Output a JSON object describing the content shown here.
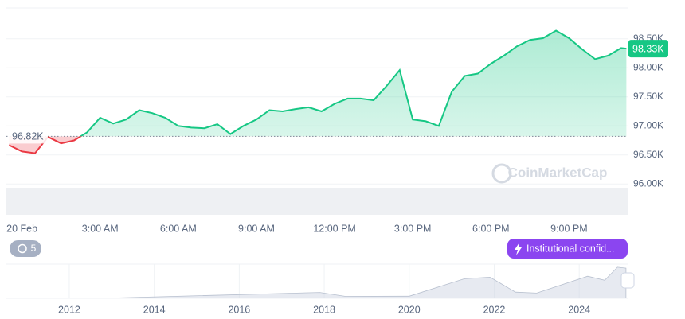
{
  "chart_data": [
    {
      "type": "line",
      "x": [
        -0.5,
        0,
        0.5,
        1,
        1.5,
        2,
        2.5,
        3,
        3.5,
        4,
        4.5,
        5,
        5.5,
        6,
        6.5,
        7,
        7.5,
        8,
        8.5,
        9,
        9.5,
        10,
        10.5,
        11,
        11.5,
        12,
        12.5,
        13,
        13.5,
        14,
        14.5,
        15,
        15.5,
        16,
        16.5,
        17,
        17.5,
        18,
        18.5,
        19,
        19.5,
        20,
        20.5,
        21,
        21.5,
        22,
        22.5,
        23,
        23.2
      ],
      "values": [
        96670,
        96560,
        96530,
        96810,
        96700,
        96750,
        96890,
        97140,
        97040,
        97110,
        97270,
        97220,
        97140,
        97000,
        96970,
        96960,
        97030,
        96860,
        97000,
        97110,
        97270,
        97250,
        97290,
        97320,
        97250,
        97380,
        97470,
        97470,
        97440,
        97690,
        97960,
        97110,
        97080,
        97000,
        97590,
        97860,
        97900,
        98070,
        98210,
        98370,
        98480,
        98510,
        98640,
        98510,
        98320,
        98150,
        98210,
        98340,
        98330
      ],
      "color": "#16c784",
      "below_color": "#ea3943",
      "xlim": [
        -0.6,
        23.25
      ],
      "ylim": [
        95470,
        99030
      ],
      "xticks": [
        {
          "value": 0,
          "label": "20 Feb"
        },
        {
          "value": 3,
          "label": "3:00 AM"
        },
        {
          "value": 6,
          "label": "6:00 AM"
        },
        {
          "value": 9,
          "label": "9:00 AM"
        },
        {
          "value": 12,
          "label": "12:00 PM"
        },
        {
          "value": 15,
          "label": "3:00 PM"
        },
        {
          "value": 18,
          "label": "6:00 PM"
        },
        {
          "value": 21,
          "label": "9:00 PM"
        }
      ],
      "yticks": [
        {
          "value": 96000,
          "label": "96.00K"
        },
        {
          "value": 96500,
          "label": "96.50K"
        },
        {
          "value": 97000,
          "label": "97.00K"
        },
        {
          "value": 97500,
          "label": "97.50K"
        },
        {
          "value": 98000,
          "label": "98.00K"
        },
        {
          "value": 98500,
          "label": "98.50K"
        }
      ],
      "baseline": {
        "value": 96820,
        "label": "96.82K"
      },
      "last_label": {
        "value": 98330,
        "label": "98.33K"
      },
      "grid": true
    },
    {
      "type": "area",
      "x": [
        2010.6,
        2013,
        2017.9,
        2018.5,
        2020,
        2021.3,
        2021.9,
        2022.5,
        2023,
        2024.2,
        2024.6,
        2024.9,
        2025.1
      ],
      "values": [
        0,
        1000,
        19000,
        6500,
        7000,
        63000,
        68000,
        20000,
        17000,
        71000,
        58000,
        100000,
        97000
      ],
      "color": "#cfd6e4",
      "xlim": [
        2010.52,
        2025.14
      ],
      "ylim": [
        0,
        110000
      ],
      "xticks": [
        2012,
        2014,
        2016,
        2018,
        2020,
        2022,
        2024
      ]
    }
  ],
  "ui": {
    "watermark": "CoinMarketCap",
    "history_badge": "5",
    "news_badge": "Institutional confid..."
  }
}
